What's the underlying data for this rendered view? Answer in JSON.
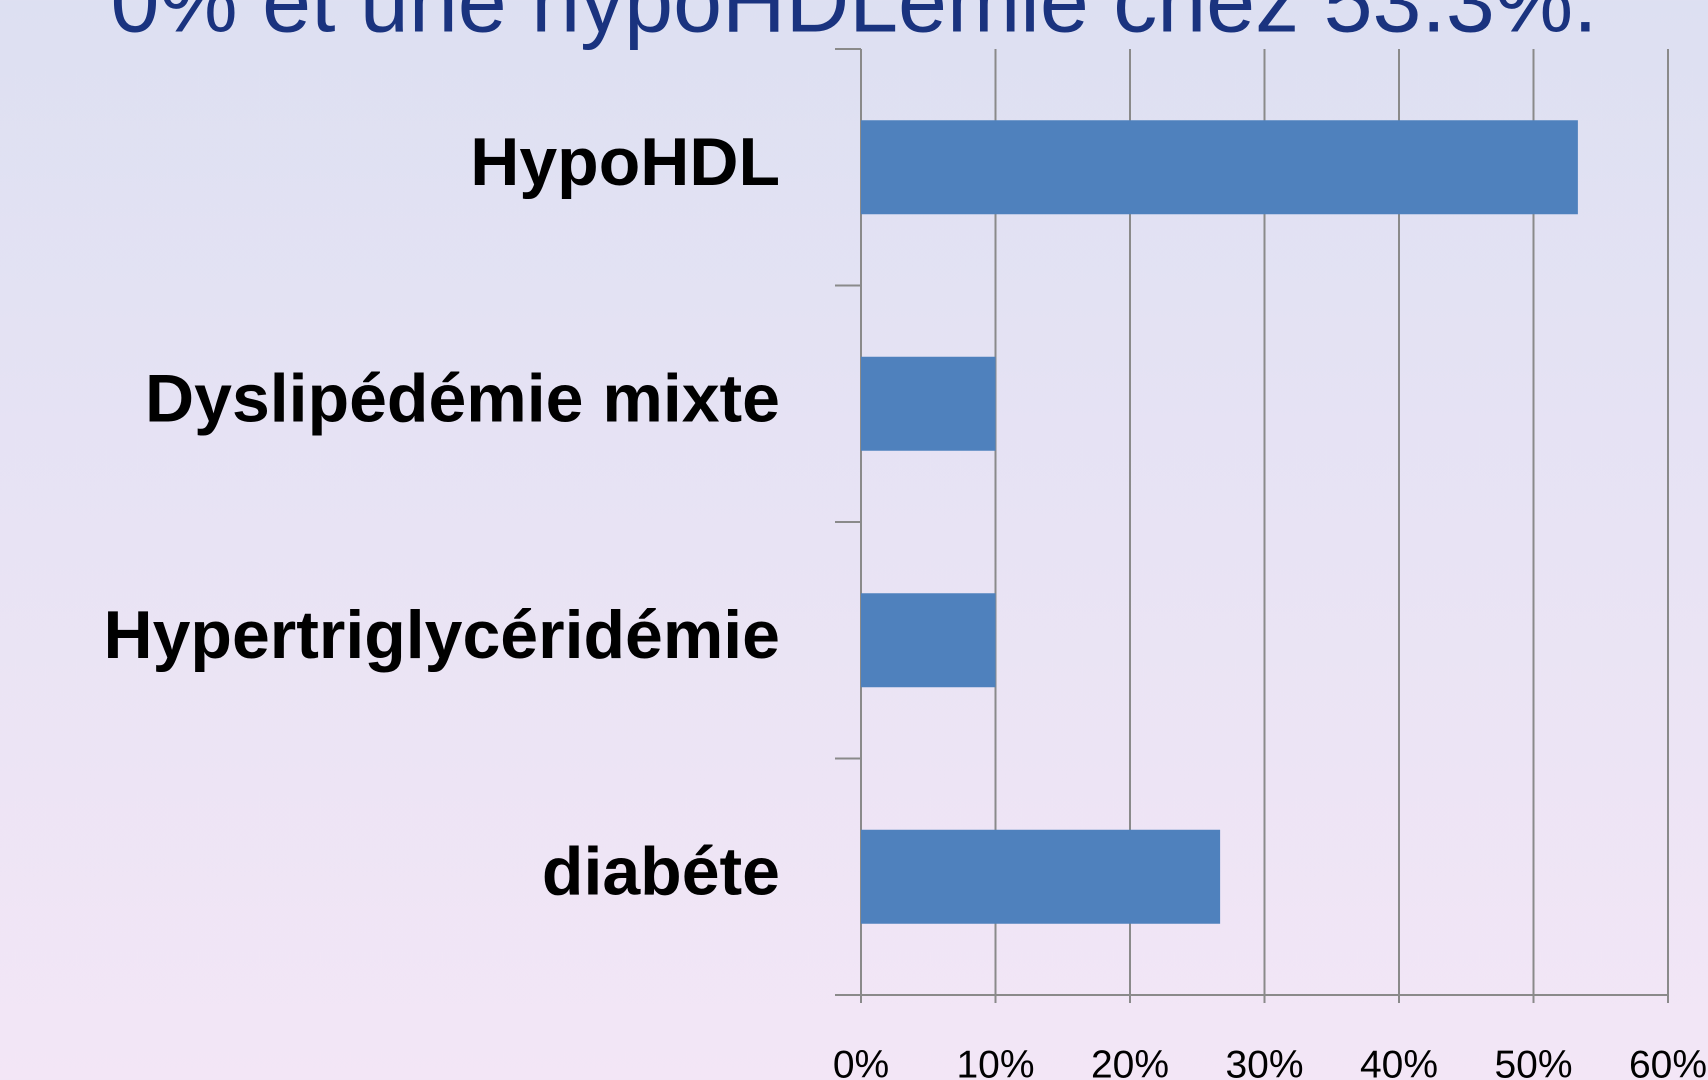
{
  "chart_data": {
    "type": "bar",
    "orientation": "horizontal",
    "title": "0% et une hypoHDLémie chez 53.3%.",
    "categories": [
      "HypoHDL",
      "Dyslipédémie mixte",
      "Hypertriglycéridémie",
      "diabéte"
    ],
    "values": [
      53.3,
      10,
      10,
      26.7
    ],
    "color": "#4f81bd",
    "xlim": [
      0,
      60
    ],
    "xticks": [
      {
        "value": 0,
        "label": "0%"
      },
      {
        "value": 10,
        "label": "10%"
      },
      {
        "value": 20,
        "label": "20%"
      },
      {
        "value": 30,
        "label": "30%"
      },
      {
        "value": 40,
        "label": "40%"
      },
      {
        "value": 50,
        "label": "50%"
      },
      {
        "value": 60,
        "label": "60%"
      }
    ],
    "grid": true
  }
}
